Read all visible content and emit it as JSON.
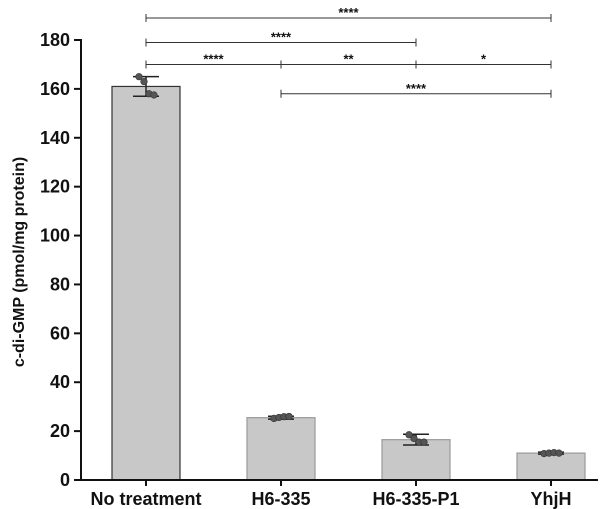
{
  "chart_data": {
    "type": "bar",
    "title": "",
    "xlabel": "",
    "ylabel": "c-di-GMP (pmol/mg protein)",
    "ylim": [
      0,
      180
    ],
    "yticks": [
      0,
      20,
      40,
      60,
      80,
      100,
      120,
      140,
      160,
      180
    ],
    "categories": [
      "No treatment",
      "H6-335",
      "H6-335-P1",
      "YhjH"
    ],
    "values": [
      161,
      25.5,
      16.5,
      11
    ],
    "error": [
      4,
      0.6,
      2.2,
      0.4
    ],
    "points": [
      [
        165,
        163,
        158,
        157.5
      ],
      [
        25.2,
        25.6,
        25.9,
        26.0
      ],
      [
        18.5,
        17.0,
        15.5,
        15.5
      ],
      [
        10.8,
        11.0,
        11.2,
        11.0
      ]
    ],
    "bar_color": "#c8c8c8",
    "significance": [
      {
        "from": 0,
        "to": 3,
        "label": "****",
        "y": 189
      },
      {
        "from": 0,
        "to": 2,
        "label": "****",
        "y": 179
      },
      {
        "from": 0,
        "to": 1,
        "label": "****",
        "y": 170
      },
      {
        "from": 1,
        "to": 2,
        "label": "**",
        "y": 170
      },
      {
        "from": 2,
        "to": 3,
        "label": "*",
        "y": 170
      },
      {
        "from": 1,
        "to": 3,
        "label": "****",
        "y": 158
      }
    ],
    "grid": false,
    "legend": "none"
  }
}
